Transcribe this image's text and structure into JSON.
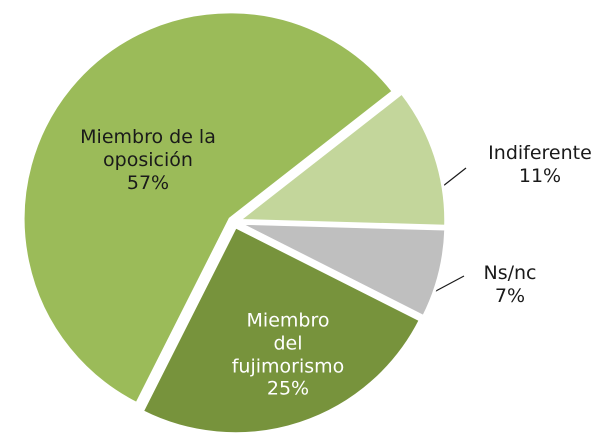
{
  "chart_data": {
    "type": "pie",
    "categories": [
      "Indiferente",
      "Ns/nc",
      "Miembro del fujimorismo",
      "Miembro de la oposición"
    ],
    "values": [
      11,
      7,
      25,
      57
    ],
    "value_labels": [
      "11%",
      "7%",
      "25%",
      "57%"
    ],
    "colors": [
      "#c3d69b",
      "#bfbfbf",
      "#77933c",
      "#9bbb59"
    ]
  }
}
